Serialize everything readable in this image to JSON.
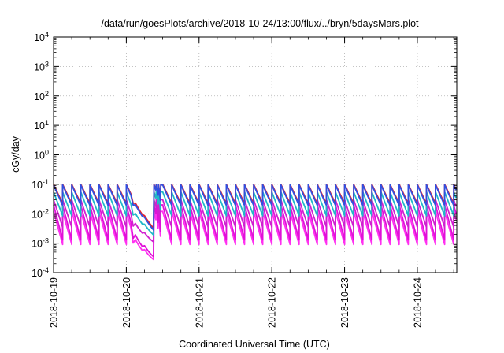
{
  "chart_data": {
    "type": "line",
    "title": "/data/run/goesPlots/archive/2018-10-24/13:00/flux/../bryn/5daysMars.plot",
    "xlabel": "Coordinated Universal Time (UTC)",
    "ylabel": "cGy/day",
    "x_range": [
      "2018-10-19T00:00",
      "2018-10-24T13:00"
    ],
    "x_ticks": [
      "2018-10-19",
      "2018-10-20",
      "2018-10-21",
      "2018-10-22",
      "2018-10-23",
      "2018-10-24"
    ],
    "ylim": [
      0.0001,
      10000
    ],
    "y_scale": "log",
    "y_ticks": [
      {
        "base": "10",
        "exp": "-4"
      },
      {
        "base": "10",
        "exp": "-3"
      },
      {
        "base": "10",
        "exp": "-2"
      },
      {
        "base": "10",
        "exp": "-1"
      },
      {
        "base": "10",
        "exp": "0"
      },
      {
        "base": "10",
        "exp": "1"
      },
      {
        "base": "10",
        "exp": "2"
      },
      {
        "base": "10",
        "exp": "3"
      },
      {
        "base": "10",
        "exp": "4"
      }
    ],
    "grid": true,
    "series_pattern": "sawtooth, period 3 h",
    "series": [
      {
        "color": "#e8202a",
        "peak": 0.1,
        "trough": 0.022,
        "dip_min": 0.0032
      },
      {
        "color": "#3050e0",
        "peak": 0.095,
        "trough": 0.019,
        "dip_min": 0.0028
      },
      {
        "color": "#20b8c8",
        "peak": 0.055,
        "trough": 0.0085,
        "dip_min": 0.0019
      },
      {
        "color": "#d020d0",
        "peak": 0.03,
        "trough": 0.0035,
        "dip_min": 0.0011
      },
      {
        "color": "#e010d8",
        "peak": 0.02,
        "trough": 0.0013,
        "dip_min": 0.00035
      },
      {
        "color": "#ff30f0",
        "peak": 0.012,
        "trough": 0.0009,
        "dip_min": 0.00028
      }
    ],
    "dip_window": [
      "2018-10-20T02:00",
      "2018-10-20T09:00"
    ]
  }
}
